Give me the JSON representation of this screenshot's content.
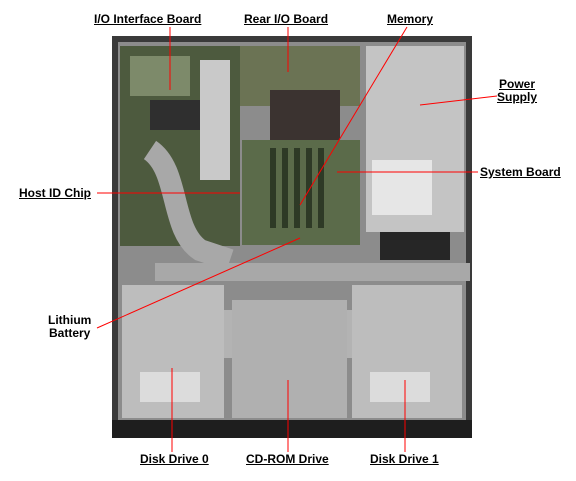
{
  "labels": {
    "io_interface_board": "I/O Interface Board",
    "rear_io_board": "Rear I/O Board",
    "memory": "Memory",
    "power_supply_line1": "Power",
    "power_supply_line2": "Supply",
    "system_board": "System Board",
    "host_id_chip": "Host ID Chip",
    "lithium_battery_line1": "Lithium",
    "lithium_battery_line2": "Battery",
    "disk_drive_0": "Disk Drive 0",
    "cdrom_drive": "CD-ROM Drive",
    "disk_drive_1": "Disk Drive 1"
  },
  "colors": {
    "leader": "#ff0000",
    "chassis_dark": "#2b2b2b",
    "board_green": "#5b6b4a",
    "metal": "#b9b9b9",
    "cable_gray": "#a8a8a8"
  }
}
